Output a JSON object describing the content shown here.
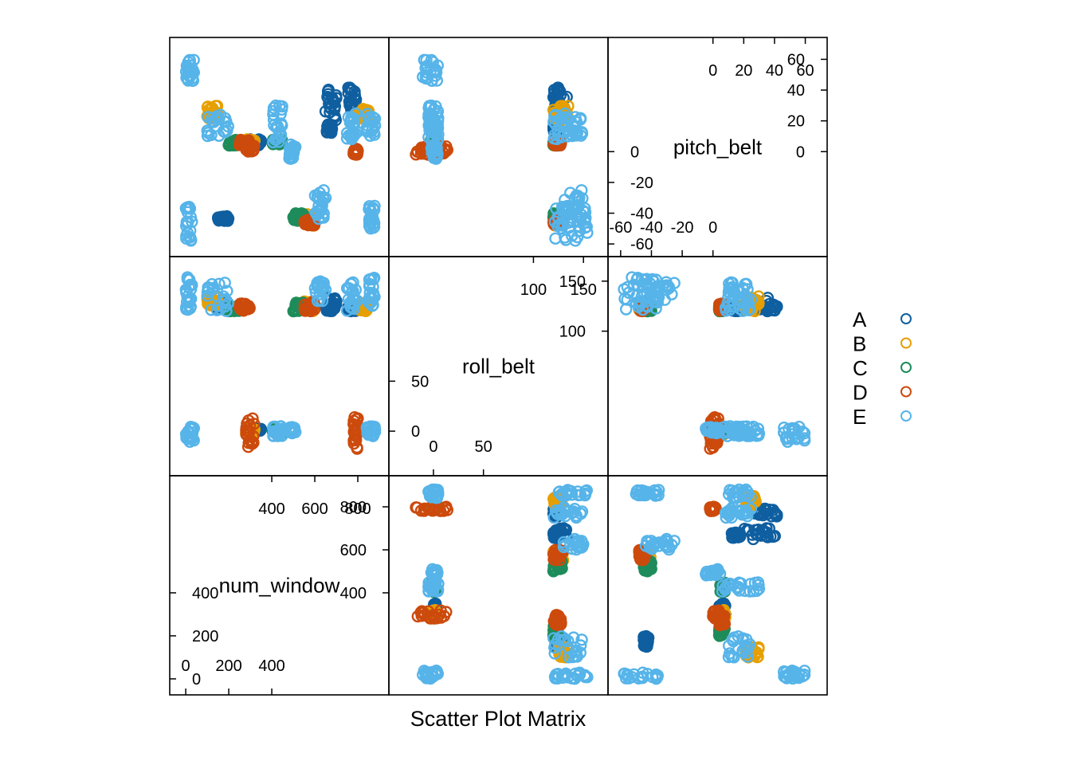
{
  "chart_data": {
    "type": "scatter",
    "subtype": "scatter-plot-matrix",
    "xlabel": "Scatter Plot Matrix",
    "variables": [
      {
        "name": "num_window",
        "range": [
          -30,
          900
        ],
        "lower_ticks": [
          "0",
          "200",
          "400"
        ],
        "upper_ticks": [
          "400",
          "600",
          "800"
        ],
        "lower_tick_values": [
          0,
          200,
          400
        ],
        "upper_tick_values": [
          400,
          600,
          800
        ]
      },
      {
        "name": "roll_belt",
        "range": [
          -35,
          165
        ],
        "lower_ticks": [
          "0",
          "50"
        ],
        "upper_ticks": [
          "100",
          "150"
        ],
        "lower_tick_values": [
          0,
          50
        ],
        "upper_tick_values": [
          100,
          150
        ]
      },
      {
        "name": "pitch_belt",
        "range": [
          -62,
          68
        ],
        "lower_ticks": [
          "-60",
          "-40",
          "-20",
          "0"
        ],
        "upper_ticks": [
          "0",
          "20",
          "40",
          "60"
        ],
        "lower_tick_values": [
          -60,
          -40,
          -20,
          0
        ],
        "upper_tick_values": [
          0,
          20,
          40,
          60
        ]
      }
    ],
    "legend": {
      "placement": "right",
      "entries": [
        {
          "label": "A",
          "color": "#0F5FA0"
        },
        {
          "label": "B",
          "color": "#E69F00"
        },
        {
          "label": "C",
          "color": "#1E8C5A"
        },
        {
          "label": "D",
          "color": "#CC4A0C"
        },
        {
          "label": "E",
          "color": "#56B4E9"
        }
      ]
    },
    "clusters": [
      {
        "cls": "A",
        "num_window": [
          650,
          700
        ],
        "roll_belt": [
          120,
          135
        ],
        "pitch_belt": [
          20,
          42
        ]
      },
      {
        "cls": "A",
        "num_window": [
          150,
          200
        ],
        "roll_belt": [
          120,
          130
        ],
        "pitch_belt": [
          -45,
          -42
        ]
      },
      {
        "cls": "A",
        "num_window": [
          750,
          800
        ],
        "roll_belt": [
          120,
          128
        ],
        "pitch_belt": [
          25,
          42
        ]
      },
      {
        "cls": "A",
        "num_window": [
          650,
          680
        ],
        "roll_belt": [
          120,
          125
        ],
        "pitch_belt": [
          12,
          18
        ]
      },
      {
        "cls": "A",
        "num_window": [
          300,
          350
        ],
        "roll_belt": [
          -1,
          3
        ],
        "pitch_belt": [
          4,
          8
        ]
      },
      {
        "cls": "B",
        "num_window": [
          280,
          320
        ],
        "roll_belt": [
          -3,
          3
        ],
        "pitch_belt": [
          4,
          8
        ]
      },
      {
        "cls": "B",
        "num_window": [
          100,
          150
        ],
        "roll_belt": [
          125,
          135
        ],
        "pitch_belt": [
          20,
          30
        ]
      },
      {
        "cls": "B",
        "num_window": [
          550,
          600
        ],
        "roll_belt": [
          120,
          130
        ],
        "pitch_belt": [
          -48,
          -40
        ]
      },
      {
        "cls": "B",
        "num_window": [
          800,
          850
        ],
        "roll_belt": [
          120,
          128
        ],
        "pitch_belt": [
          20,
          28
        ]
      },
      {
        "cls": "C",
        "num_window": [
          400,
          450
        ],
        "roll_belt": [
          -2,
          2
        ],
        "pitch_belt": [
          4,
          8
        ]
      },
      {
        "cls": "C",
        "num_window": [
          500,
          550
        ],
        "roll_belt": [
          120,
          130
        ],
        "pitch_belt": [
          -45,
          -40
        ]
      },
      {
        "cls": "C",
        "num_window": [
          200,
          250
        ],
        "roll_belt": [
          120,
          125
        ],
        "pitch_belt": [
          4,
          8
        ]
      },
      {
        "cls": "D",
        "num_window": [
          280,
          320
        ],
        "roll_belt": [
          -18,
          14
        ],
        "pitch_belt": [
          0,
          4
        ]
      },
      {
        "cls": "D",
        "num_window": [
          780,
          800
        ],
        "roll_belt": [
          -18,
          14
        ],
        "pitch_belt": [
          -2,
          2
        ]
      },
      {
        "cls": "D",
        "num_window": [
          550,
          600
        ],
        "roll_belt": [
          120,
          130
        ],
        "pitch_belt": [
          -48,
          -44
        ]
      },
      {
        "cls": "D",
        "num_window": [
          250,
          300
        ],
        "roll_belt": [
          120,
          128
        ],
        "pitch_belt": [
          4,
          8
        ]
      },
      {
        "cls": "E",
        "num_window": [
          0,
          40
        ],
        "roll_belt": [
          -15,
          5
        ],
        "pitch_belt": [
          45,
          60
        ]
      },
      {
        "cls": "E",
        "num_window": [
          0,
          30
        ],
        "roll_belt": [
          120,
          155
        ],
        "pitch_belt": [
          -58,
          -35
        ]
      },
      {
        "cls": "E",
        "num_window": [
          100,
          200
        ],
        "roll_belt": [
          120,
          150
        ],
        "pitch_belt": [
          10,
          25
        ]
      },
      {
        "cls": "E",
        "num_window": [
          400,
          450
        ],
        "roll_belt": [
          -5,
          5
        ],
        "pitch_belt": [
          5,
          30
        ]
      },
      {
        "cls": "E",
        "num_window": [
          480,
          510
        ],
        "roll_belt": [
          -2,
          4
        ],
        "pitch_belt": [
          -5,
          5
        ]
      },
      {
        "cls": "E",
        "num_window": [
          600,
          650
        ],
        "roll_belt": [
          130,
          150
        ],
        "pitch_belt": [
          -45,
          -25
        ]
      },
      {
        "cls": "E",
        "num_window": [
          750,
          800
        ],
        "roll_belt": [
          120,
          150
        ],
        "pitch_belt": [
          5,
          25
        ]
      },
      {
        "cls": "E",
        "num_window": [
          850,
          880
        ],
        "roll_belt": [
          125,
          155
        ],
        "pitch_belt": [
          -50,
          -35
        ]
      },
      {
        "cls": "E",
        "num_window": [
          840,
          880
        ],
        "roll_belt": [
          -5,
          5
        ],
        "pitch_belt": [
          10,
          25
        ]
      }
    ]
  }
}
